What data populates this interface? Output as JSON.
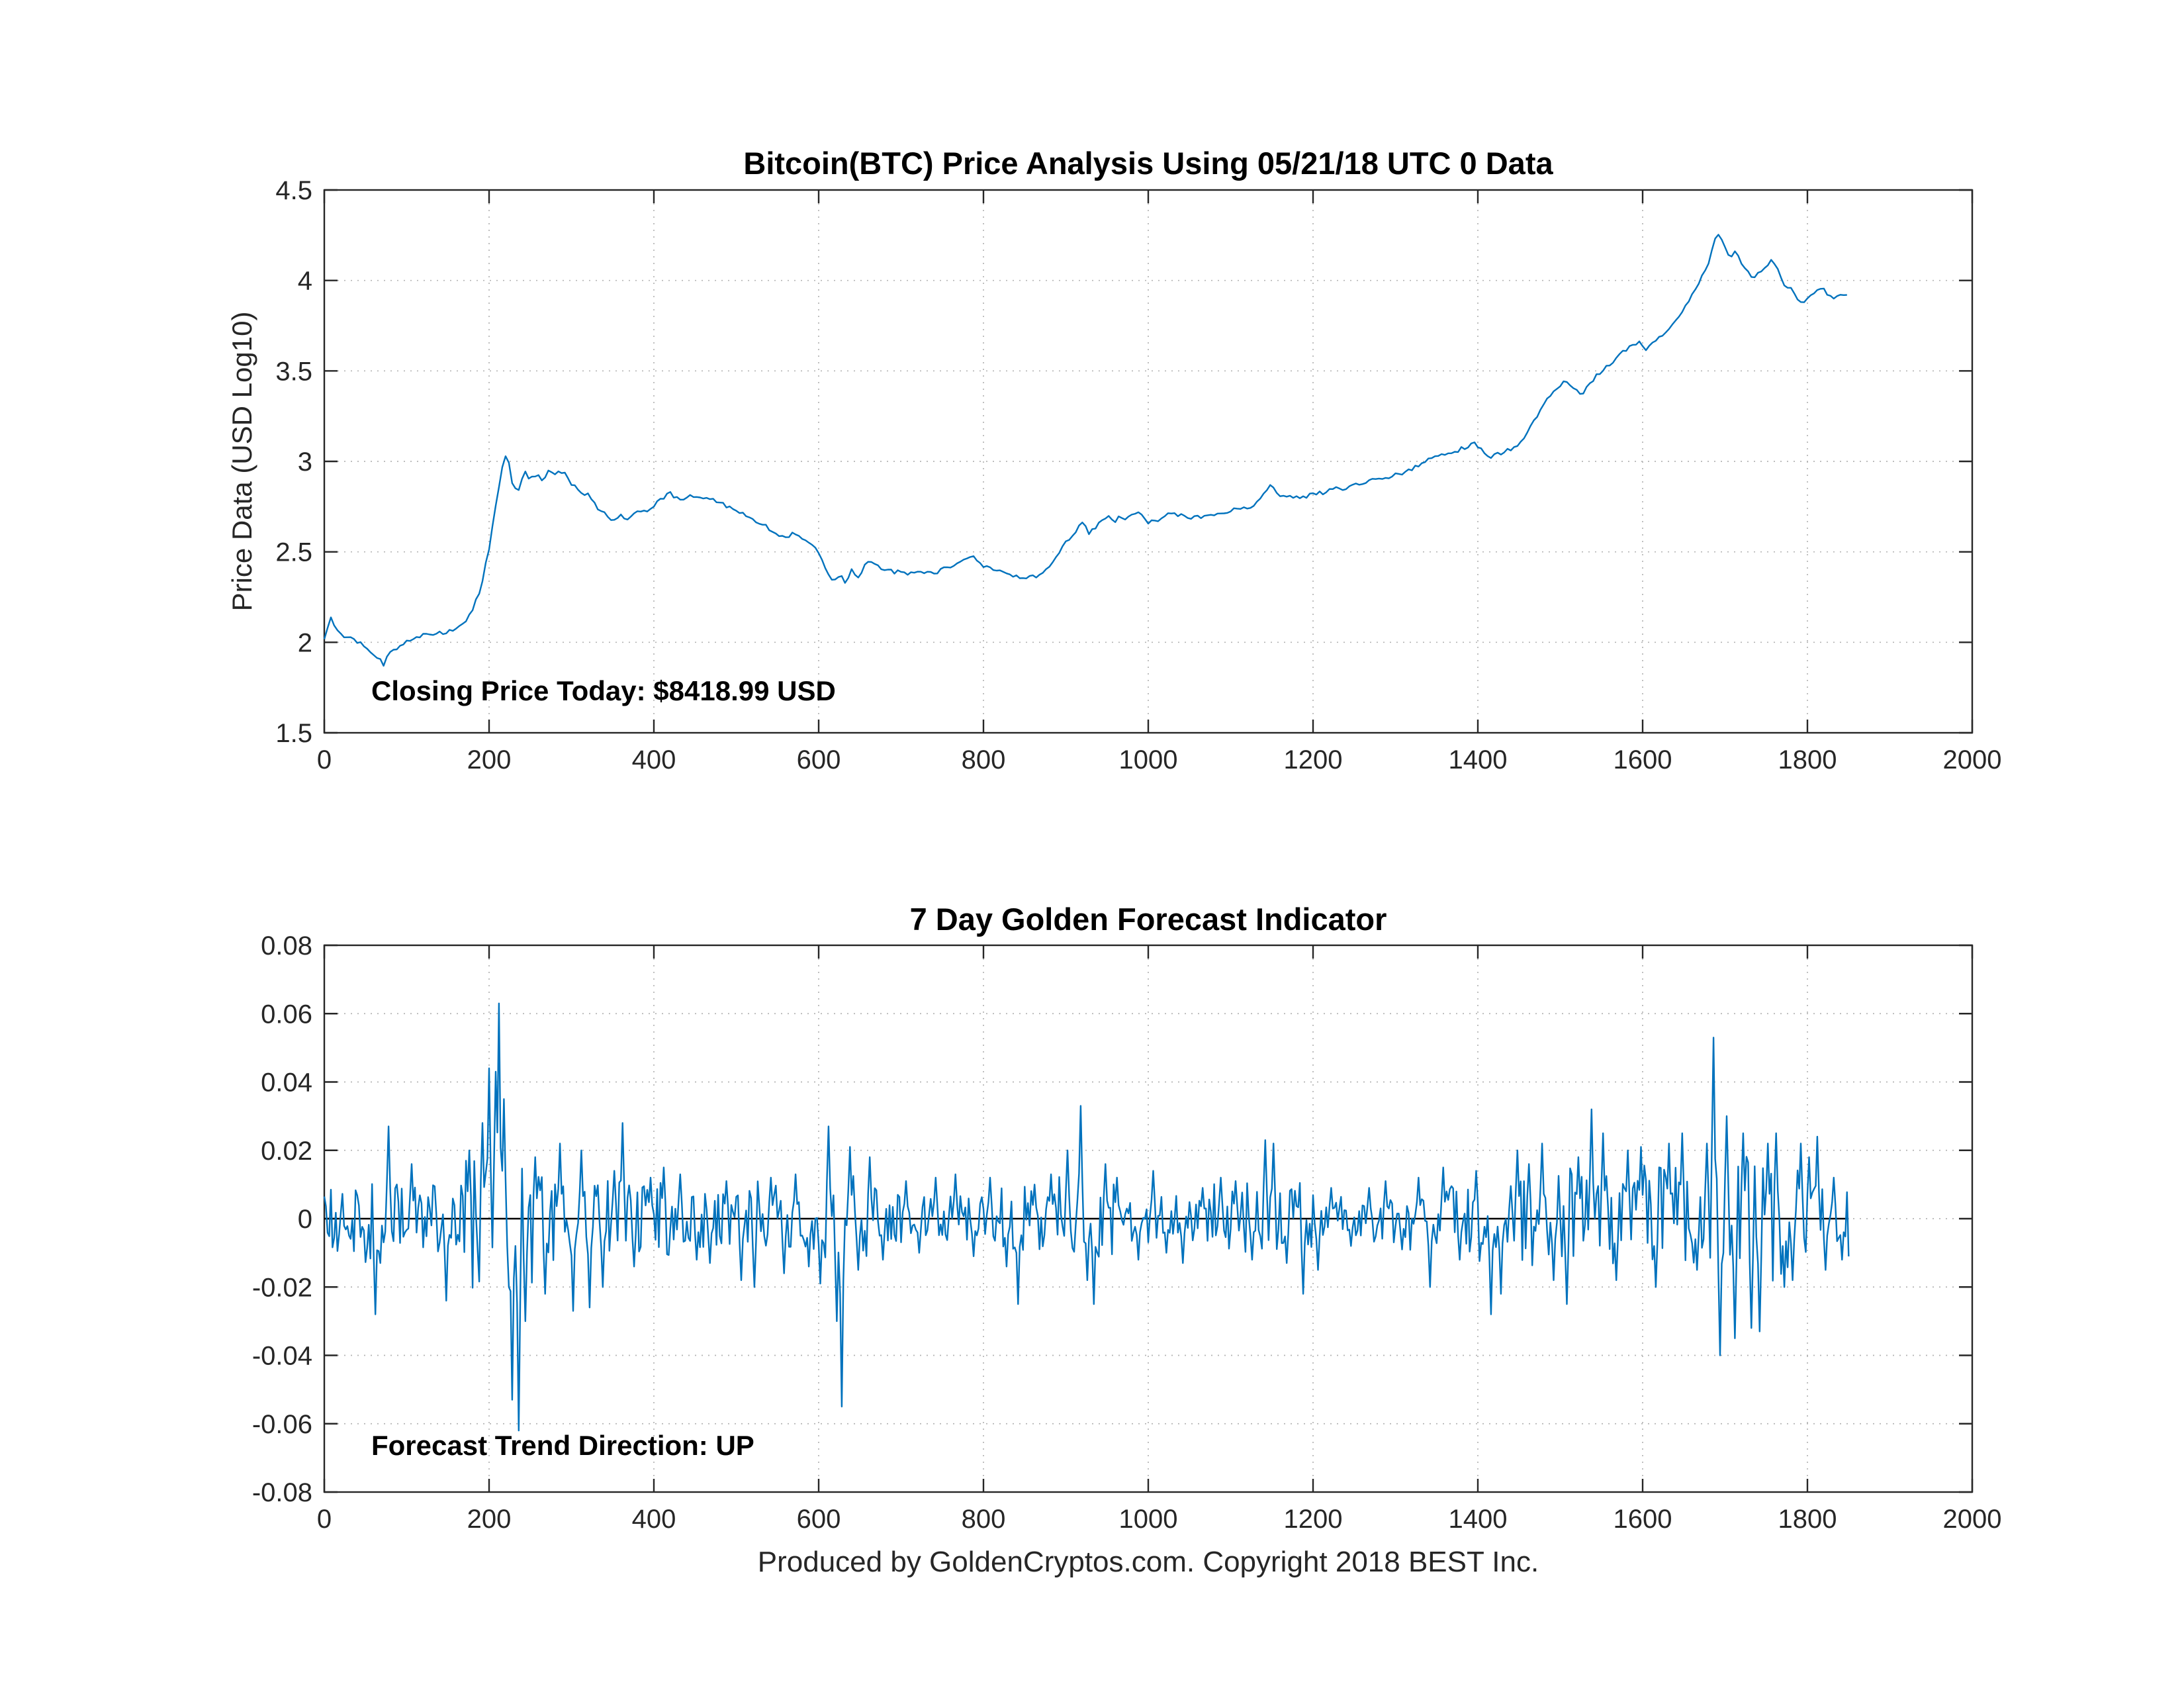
{
  "page": {
    "background": "#ffffff"
  },
  "footer": {
    "text": "Produced by GoldenCryptos.com. Copyright 2018 BEST Inc."
  },
  "chart_data": [
    {
      "type": "line",
      "title": "Bitcoin(BTC) Price Analysis Using 05/21/18 UTC 0 Data",
      "xlabel": "",
      "ylabel": "Price Data (USD Log10)",
      "annotation": "Closing Price Today: $8418.99 USD",
      "xlim": [
        0,
        2000
      ],
      "ylim": [
        1.5,
        4.5
      ],
      "xticks": [
        0,
        200,
        400,
        600,
        800,
        1000,
        1200,
        1400,
        1600,
        1800,
        2000
      ],
      "xtick_labels": [
        "0",
        "200",
        "400",
        "600",
        "800",
        "1000",
        "1200",
        "1400",
        "1600",
        "1800",
        "2000"
      ],
      "yticks": [
        1.5,
        2,
        2.5,
        3,
        3.5,
        4,
        4.5
      ],
      "ytick_labels": [
        "1.5",
        "2",
        "2.5",
        "3",
        "3.5",
        "4",
        "4.5"
      ],
      "grid": true,
      "legend": "none",
      "line_color": "#0072BD",
      "noise": {
        "seed": 7,
        "jitter": 0.011,
        "step": 4,
        "x_max": 1850
      },
      "series": [
        {
          "name": "BTC price (log10 USD)",
          "anchors_x": [
            0,
            8,
            15,
            25,
            35,
            45,
            55,
            65,
            72,
            80,
            90,
            100,
            110,
            120,
            130,
            140,
            150,
            160,
            170,
            180,
            190,
            200,
            210,
            218,
            222,
            228,
            235,
            242,
            250,
            258,
            265,
            272,
            280,
            290,
            300,
            310,
            320,
            330,
            340,
            350,
            360,
            370,
            380,
            390,
            400,
            410,
            420,
            430,
            440,
            450,
            460,
            470,
            480,
            490,
            500,
            510,
            520,
            530,
            540,
            550,
            560,
            570,
            580,
            590,
            600,
            610,
            618,
            625,
            632,
            640,
            648,
            655,
            662,
            670,
            680,
            690,
            700,
            710,
            720,
            730,
            740,
            750,
            760,
            770,
            780,
            790,
            800,
            810,
            820,
            830,
            840,
            850,
            860,
            870,
            880,
            890,
            900,
            910,
            920,
            928,
            935,
            942,
            950,
            958,
            965,
            972,
            980,
            990,
            1000,
            1010,
            1020,
            1030,
            1040,
            1050,
            1060,
            1070,
            1080,
            1090,
            1100,
            1110,
            1120,
            1130,
            1140,
            1148,
            1155,
            1165,
            1175,
            1185,
            1195,
            1205,
            1215,
            1225,
            1235,
            1245,
            1255,
            1265,
            1275,
            1285,
            1295,
            1305,
            1315,
            1325,
            1335,
            1345,
            1355,
            1365,
            1375,
            1385,
            1395,
            1405,
            1415,
            1425,
            1435,
            1445,
            1455,
            1465,
            1475,
            1485,
            1495,
            1505,
            1515,
            1525,
            1535,
            1545,
            1555,
            1565,
            1575,
            1585,
            1595,
            1605,
            1615,
            1625,
            1635,
            1645,
            1655,
            1665,
            1675,
            1682,
            1690,
            1697,
            1705,
            1712,
            1720,
            1728,
            1735,
            1742,
            1750,
            1758,
            1765,
            1772,
            1780,
            1788,
            1795,
            1802,
            1810,
            1818,
            1825,
            1832,
            1840,
            1850
          ],
          "anchors_y": [
            2.02,
            2.13,
            2.08,
            2.02,
            2.02,
            1.99,
            1.96,
            1.92,
            1.88,
            1.95,
            1.97,
            2.0,
            2.02,
            2.05,
            2.03,
            2.05,
            2.06,
            2.08,
            2.1,
            2.18,
            2.3,
            2.52,
            2.8,
            3.02,
            3.05,
            2.88,
            2.82,
            2.95,
            2.9,
            2.93,
            2.88,
            2.95,
            2.93,
            2.95,
            2.88,
            2.83,
            2.82,
            2.75,
            2.72,
            2.66,
            2.7,
            2.68,
            2.72,
            2.72,
            2.76,
            2.8,
            2.82,
            2.79,
            2.8,
            2.81,
            2.79,
            2.8,
            2.77,
            2.75,
            2.72,
            2.71,
            2.68,
            2.66,
            2.63,
            2.6,
            2.58,
            2.6,
            2.57,
            2.55,
            2.5,
            2.38,
            2.32,
            2.38,
            2.33,
            2.4,
            2.36,
            2.42,
            2.45,
            2.42,
            2.4,
            2.39,
            2.39,
            2.38,
            2.38,
            2.39,
            2.38,
            2.4,
            2.42,
            2.44,
            2.46,
            2.47,
            2.42,
            2.4,
            2.39,
            2.37,
            2.36,
            2.36,
            2.36,
            2.38,
            2.41,
            2.48,
            2.55,
            2.6,
            2.67,
            2.6,
            2.63,
            2.67,
            2.7,
            2.66,
            2.7,
            2.67,
            2.71,
            2.72,
            2.66,
            2.67,
            2.7,
            2.71,
            2.7,
            2.69,
            2.69,
            2.7,
            2.71,
            2.72,
            2.73,
            2.73,
            2.74,
            2.76,
            2.82,
            2.88,
            2.82,
            2.8,
            2.81,
            2.8,
            2.81,
            2.82,
            2.83,
            2.85,
            2.85,
            2.86,
            2.87,
            2.88,
            2.9,
            2.91,
            2.92,
            2.93,
            2.95,
            2.97,
            3.0,
            3.02,
            3.03,
            3.04,
            3.06,
            3.08,
            3.1,
            3.06,
            3.02,
            3.04,
            3.06,
            3.08,
            3.12,
            3.2,
            3.28,
            3.35,
            3.4,
            3.45,
            3.42,
            3.37,
            3.42,
            3.48,
            3.52,
            3.56,
            3.6,
            3.64,
            3.66,
            3.62,
            3.66,
            3.7,
            3.74,
            3.8,
            3.88,
            3.96,
            4.05,
            4.12,
            4.28,
            4.22,
            4.12,
            4.17,
            4.1,
            4.04,
            4.0,
            4.05,
            4.08,
            4.12,
            4.05,
            3.98,
            3.95,
            3.9,
            3.87,
            3.9,
            3.94,
            3.96,
            3.91,
            3.9,
            3.93,
            3.92
          ]
        }
      ]
    },
    {
      "type": "line",
      "title": "7 Day Golden Forecast Indicator",
      "xlabel": "Produced by GoldenCryptos.com. Copyright 2018 BEST Inc.",
      "ylabel": "",
      "annotation": "Forecast Trend Direction: UP",
      "xlim": [
        0,
        2000
      ],
      "ylim": [
        -0.08,
        0.08
      ],
      "xticks": [
        0,
        200,
        400,
        600,
        800,
        1000,
        1200,
        1400,
        1600,
        1800,
        2000
      ],
      "xtick_labels": [
        "0",
        "200",
        "400",
        "600",
        "800",
        "1000",
        "1200",
        "1400",
        "1600",
        "1800",
        "2000"
      ],
      "yticks": [
        -0.08,
        -0.06,
        -0.04,
        -0.02,
        0,
        0.02,
        0.04,
        0.06,
        0.08
      ],
      "ytick_labels": [
        "-0.08",
        "-0.06",
        "-0.04",
        "-0.02",
        "0",
        "0.02",
        "0.04",
        "0.06",
        "0.08"
      ],
      "grid": true,
      "legend": "none",
      "line_color": "#0072BD",
      "zero_line": true,
      "noise": {
        "seed": 99,
        "step": 2,
        "x_max": 1850,
        "envelope": [
          [
            0,
            40,
            0.007
          ],
          [
            40,
            100,
            0.01
          ],
          [
            100,
            170,
            0.007
          ],
          [
            170,
            260,
            0.015
          ],
          [
            260,
            330,
            0.009
          ],
          [
            330,
            420,
            0.008
          ],
          [
            420,
            520,
            0.006
          ],
          [
            520,
            600,
            0.008
          ],
          [
            600,
            680,
            0.009
          ],
          [
            680,
            820,
            0.005
          ],
          [
            820,
            880,
            0.007
          ],
          [
            880,
            960,
            0.009
          ],
          [
            960,
            1080,
            0.005
          ],
          [
            1080,
            1200,
            0.008
          ],
          [
            1200,
            1300,
            0.005
          ],
          [
            1300,
            1400,
            0.007
          ],
          [
            1400,
            1500,
            0.01
          ],
          [
            1500,
            1600,
            0.011
          ],
          [
            1600,
            1700,
            0.012
          ],
          [
            1700,
            1800,
            0.013
          ],
          [
            1800,
            1851,
            0.008
          ]
        ]
      },
      "spikes": [
        [
          62,
          -0.028
        ],
        [
          78,
          0.027
        ],
        [
          105,
          0.016
        ],
        [
          148,
          -0.024
        ],
        [
          175,
          0.02
        ],
        [
          192,
          0.028
        ],
        [
          200,
          0.044
        ],
        [
          207,
          0.043
        ],
        [
          211,
          0.063
        ],
        [
          218,
          0.035
        ],
        [
          224,
          -0.02
        ],
        [
          228,
          -0.053
        ],
        [
          236,
          -0.062
        ],
        [
          244,
          -0.03
        ],
        [
          255,
          0.018
        ],
        [
          268,
          -0.022
        ],
        [
          285,
          0.022
        ],
        [
          302,
          -0.027
        ],
        [
          312,
          0.02
        ],
        [
          322,
          -0.026
        ],
        [
          338,
          -0.02
        ],
        [
          352,
          0.014
        ],
        [
          362,
          0.028
        ],
        [
          375,
          -0.014
        ],
        [
          395,
          0.012
        ],
        [
          412,
          0.015
        ],
        [
          432,
          0.013
        ],
        [
          452,
          -0.012
        ],
        [
          468,
          -0.013
        ],
        [
          488,
          0.011
        ],
        [
          505,
          -0.018
        ],
        [
          522,
          -0.02
        ],
        [
          542,
          0.012
        ],
        [
          558,
          -0.016
        ],
        [
          572,
          0.013
        ],
        [
          588,
          -0.014
        ],
        [
          602,
          -0.019
        ],
        [
          612,
          0.027
        ],
        [
          622,
          -0.03
        ],
        [
          628,
          -0.055
        ],
        [
          638,
          0.021
        ],
        [
          648,
          -0.015
        ],
        [
          662,
          0.018
        ],
        [
          678,
          -0.012
        ],
        [
          705,
          0.011
        ],
        [
          722,
          -0.01
        ],
        [
          742,
          0.012
        ],
        [
          765,
          0.013
        ],
        [
          788,
          -0.011
        ],
        [
          808,
          0.012
        ],
        [
          828,
          -0.014
        ],
        [
          842,
          -0.025
        ],
        [
          862,
          0.01
        ],
        [
          882,
          0.013
        ],
        [
          902,
          0.02
        ],
        [
          918,
          0.033
        ],
        [
          926,
          -0.018
        ],
        [
          934,
          -0.025
        ],
        [
          948,
          0.016
        ],
        [
          962,
          0.012
        ],
        [
          988,
          -0.012
        ],
        [
          1005,
          0.014
        ],
        [
          1022,
          -0.01
        ],
        [
          1042,
          -0.013
        ],
        [
          1065,
          0.009
        ],
        [
          1088,
          0.012
        ],
        [
          1105,
          0.011
        ],
        [
          1125,
          -0.012
        ],
        [
          1142,
          0.023
        ],
        [
          1152,
          0.022
        ],
        [
          1168,
          -0.013
        ],
        [
          1188,
          -0.022
        ],
        [
          1205,
          -0.015
        ],
        [
          1222,
          0.009
        ],
        [
          1245,
          -0.008
        ],
        [
          1268,
          0.009
        ],
        [
          1288,
          0.011
        ],
        [
          1308,
          -0.009
        ],
        [
          1328,
          0.012
        ],
        [
          1342,
          -0.02
        ],
        [
          1358,
          0.015
        ],
        [
          1378,
          -0.012
        ],
        [
          1398,
          0.014
        ],
        [
          1415,
          -0.028
        ],
        [
          1428,
          -0.022
        ],
        [
          1448,
          0.02
        ],
        [
          1462,
          0.016
        ],
        [
          1478,
          0.022
        ],
        [
          1492,
          -0.018
        ],
        [
          1508,
          -0.025
        ],
        [
          1522,
          0.018
        ],
        [
          1538,
          0.032
        ],
        [
          1552,
          0.025
        ],
        [
          1568,
          -0.018
        ],
        [
          1582,
          0.02
        ],
        [
          1598,
          0.021
        ],
        [
          1615,
          -0.02
        ],
        [
          1632,
          0.022
        ],
        [
          1648,
          0.025
        ],
        [
          1665,
          -0.015
        ],
        [
          1678,
          0.022
        ],
        [
          1686,
          0.053
        ],
        [
          1694,
          -0.04
        ],
        [
          1702,
          0.03
        ],
        [
          1712,
          -0.035
        ],
        [
          1722,
          0.025
        ],
        [
          1732,
          -0.032
        ],
        [
          1742,
          -0.033
        ],
        [
          1752,
          0.022
        ],
        [
          1762,
          0.025
        ],
        [
          1772,
          -0.02
        ],
        [
          1782,
          -0.018
        ],
        [
          1792,
          0.022
        ],
        [
          1802,
          0.018
        ],
        [
          1812,
          0.024
        ],
        [
          1822,
          -0.015
        ],
        [
          1832,
          0.012
        ],
        [
          1842,
          -0.012
        ]
      ]
    }
  ]
}
